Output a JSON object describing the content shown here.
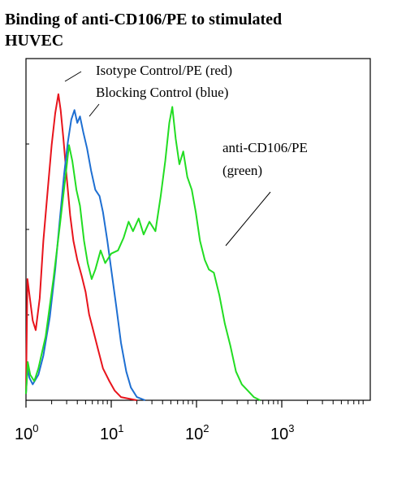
{
  "chart_data": {
    "type": "line",
    "title": "Binding of anti-CD106/PE to stimulated",
    "title_line2": "HUVEC",
    "x_scale": "log",
    "xlim": [
      1,
      10000
    ],
    "ylim": [
      0,
      1
    ],
    "x_tick_labels": [
      {
        "value": 1,
        "base": "10",
        "exp": "0"
      },
      {
        "value": 10,
        "base": "10",
        "exp": "1"
      },
      {
        "value": 100,
        "base": "10",
        "exp": "2"
      },
      {
        "value": 1000,
        "base": "10",
        "exp": "3"
      }
    ],
    "annotations": [
      {
        "text": "Isotype Control/PE (red)",
        "line": 1
      },
      {
        "text": "Blocking Control (blue)",
        "line": 2
      },
      {
        "text": "anti-CD106/PE",
        "line": 3
      },
      {
        "text": "(green)",
        "line": 4
      }
    ],
    "series": [
      {
        "color": "#e8141c",
        "points": [
          [
            1.0,
            0.02
          ],
          [
            1.04,
            0.38
          ],
          [
            1.1,
            0.33
          ],
          [
            1.2,
            0.25
          ],
          [
            1.3,
            0.22
          ],
          [
            1.45,
            0.32
          ],
          [
            1.6,
            0.5
          ],
          [
            1.8,
            0.66
          ],
          [
            2.0,
            0.8
          ],
          [
            2.2,
            0.9
          ],
          [
            2.4,
            0.96
          ],
          [
            2.55,
            0.91
          ],
          [
            2.75,
            0.82
          ],
          [
            3.0,
            0.7
          ],
          [
            3.3,
            0.58
          ],
          [
            3.6,
            0.5
          ],
          [
            4.0,
            0.44
          ],
          [
            4.5,
            0.39
          ],
          [
            5.0,
            0.34
          ],
          [
            5.5,
            0.27
          ],
          [
            6.0,
            0.23
          ],
          [
            7.0,
            0.16
          ],
          [
            8.0,
            0.1
          ],
          [
            9.5,
            0.06
          ],
          [
            11.0,
            0.03
          ],
          [
            13.0,
            0.01
          ],
          [
            16.0,
            0.005
          ],
          [
            20.0,
            0.0
          ]
        ]
      },
      {
        "color": "#1e6fd2",
        "points": [
          [
            1.0,
            0.02
          ],
          [
            1.04,
            0.1
          ],
          [
            1.1,
            0.07
          ],
          [
            1.2,
            0.05
          ],
          [
            1.4,
            0.08
          ],
          [
            1.6,
            0.14
          ],
          [
            1.9,
            0.26
          ],
          [
            2.2,
            0.41
          ],
          [
            2.5,
            0.57
          ],
          [
            2.8,
            0.71
          ],
          [
            3.1,
            0.81
          ],
          [
            3.4,
            0.88
          ],
          [
            3.7,
            0.91
          ],
          [
            4.0,
            0.87
          ],
          [
            4.3,
            0.89
          ],
          [
            4.7,
            0.84
          ],
          [
            5.2,
            0.79
          ],
          [
            5.8,
            0.72
          ],
          [
            6.5,
            0.66
          ],
          [
            7.3,
            0.64
          ],
          [
            8.0,
            0.59
          ],
          [
            9.0,
            0.5
          ],
          [
            10.0,
            0.41
          ],
          [
            11.5,
            0.29
          ],
          [
            13.0,
            0.18
          ],
          [
            15.0,
            0.09
          ],
          [
            17.0,
            0.04
          ],
          [
            20.0,
            0.01
          ],
          [
            25.0,
            0.0
          ]
        ]
      },
      {
        "color": "#22dd22",
        "points": [
          [
            1.0,
            0.02
          ],
          [
            1.05,
            0.12
          ],
          [
            1.12,
            0.08
          ],
          [
            1.25,
            0.06
          ],
          [
            1.4,
            0.1
          ],
          [
            1.7,
            0.2
          ],
          [
            2.1,
            0.38
          ],
          [
            2.5,
            0.55
          ],
          [
            2.9,
            0.7
          ],
          [
            3.2,
            0.8
          ],
          [
            3.5,
            0.75
          ],
          [
            3.9,
            0.66
          ],
          [
            4.3,
            0.61
          ],
          [
            4.8,
            0.5
          ],
          [
            5.3,
            0.43
          ],
          [
            5.9,
            0.38
          ],
          [
            6.5,
            0.41
          ],
          [
            7.5,
            0.47
          ],
          [
            8.5,
            0.43
          ],
          [
            10.0,
            0.46
          ],
          [
            12.0,
            0.47
          ],
          [
            14.0,
            0.51
          ],
          [
            16.0,
            0.56
          ],
          [
            18.0,
            0.53
          ],
          [
            21.0,
            0.57
          ],
          [
            24.0,
            0.52
          ],
          [
            28.0,
            0.56
          ],
          [
            33.0,
            0.53
          ],
          [
            38.0,
            0.64
          ],
          [
            43.0,
            0.75
          ],
          [
            48.0,
            0.87
          ],
          [
            52.0,
            0.92
          ],
          [
            57.0,
            0.82
          ],
          [
            63.0,
            0.74
          ],
          [
            70.0,
            0.78
          ],
          [
            78.0,
            0.7
          ],
          [
            88.0,
            0.66
          ],
          [
            98.0,
            0.59
          ],
          [
            110.0,
            0.5
          ],
          [
            125.0,
            0.44
          ],
          [
            140.0,
            0.41
          ],
          [
            160.0,
            0.4
          ],
          [
            185.0,
            0.33
          ],
          [
            215.0,
            0.24
          ],
          [
            250.0,
            0.17
          ],
          [
            290.0,
            0.09
          ],
          [
            340.0,
            0.05
          ],
          [
            400.0,
            0.03
          ],
          [
            470.0,
            0.01
          ],
          [
            560.0,
            0.0
          ]
        ]
      }
    ]
  }
}
